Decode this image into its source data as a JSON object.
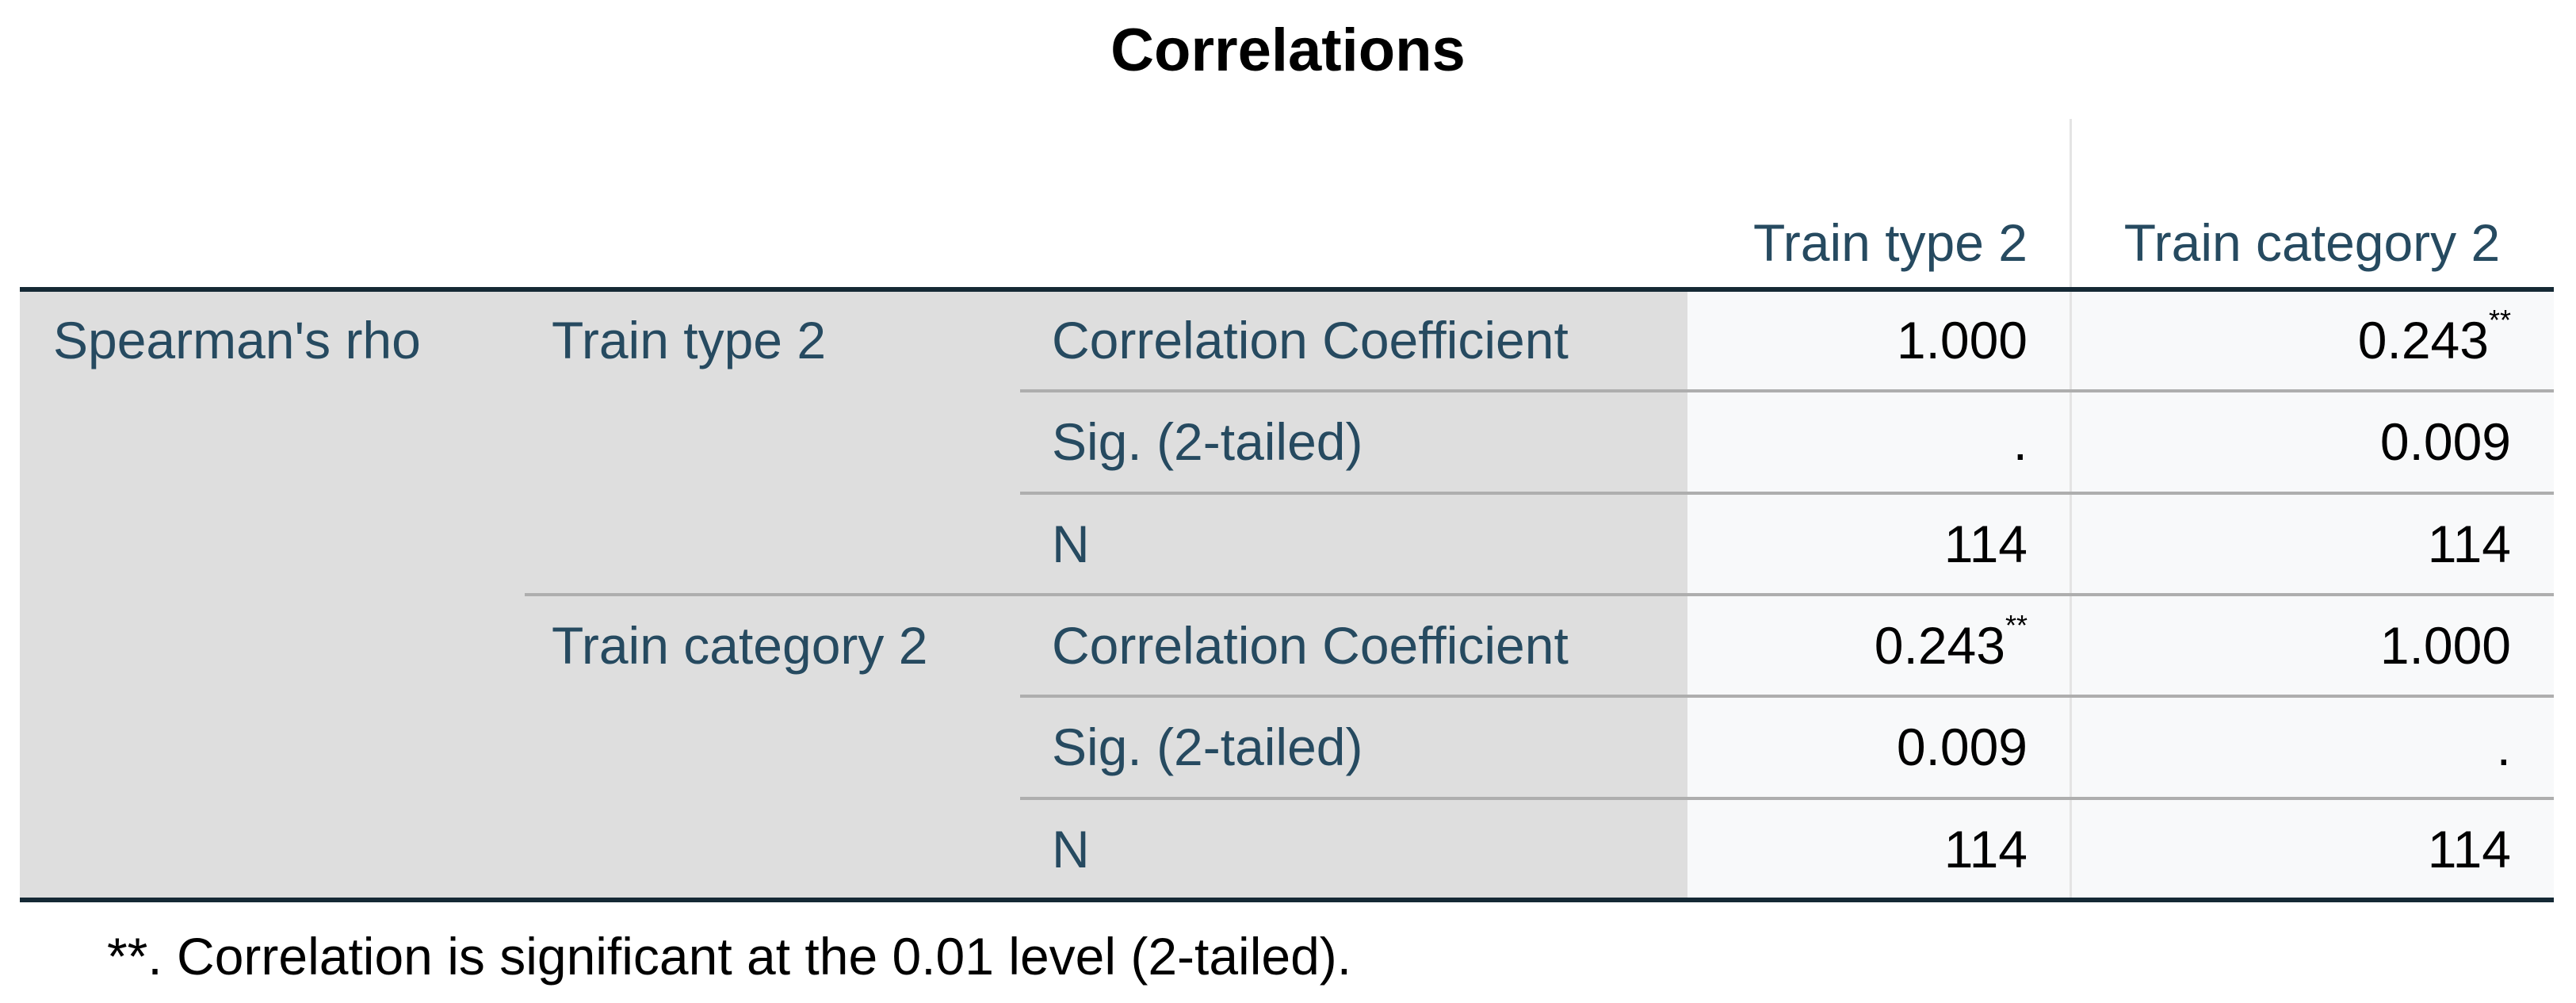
{
  "title": "Correlations",
  "columns": [
    "Train type 2",
    "Train category 2"
  ],
  "method": "Spearman's rho",
  "groups": [
    {
      "variable": "Train type 2",
      "rows": [
        {
          "stat": "Correlation Coefficient",
          "cells": [
            {
              "text": "1.000"
            },
            {
              "text": "0.243",
              "note": "**"
            }
          ]
        },
        {
          "stat": "Sig. (2-tailed)",
          "cells": [
            {
              "text": "."
            },
            {
              "text": "0.009"
            }
          ]
        },
        {
          "stat": "N",
          "cells": [
            {
              "text": "114"
            },
            {
              "text": "114"
            }
          ]
        }
      ]
    },
    {
      "variable": "Train category 2",
      "rows": [
        {
          "stat": "Correlation Coefficient",
          "cells": [
            {
              "text": "0.243",
              "note": "**"
            },
            {
              "text": "1.000"
            }
          ]
        },
        {
          "stat": "Sig. (2-tailed)",
          "cells": [
            {
              "text": "0.009"
            },
            {
              "text": "."
            }
          ]
        },
        {
          "stat": "N",
          "cells": [
            {
              "text": "114"
            },
            {
              "text": "114"
            }
          ]
        }
      ]
    }
  ],
  "footnote": "**. Correlation is significant at the 0.01 level (2-tailed)."
}
